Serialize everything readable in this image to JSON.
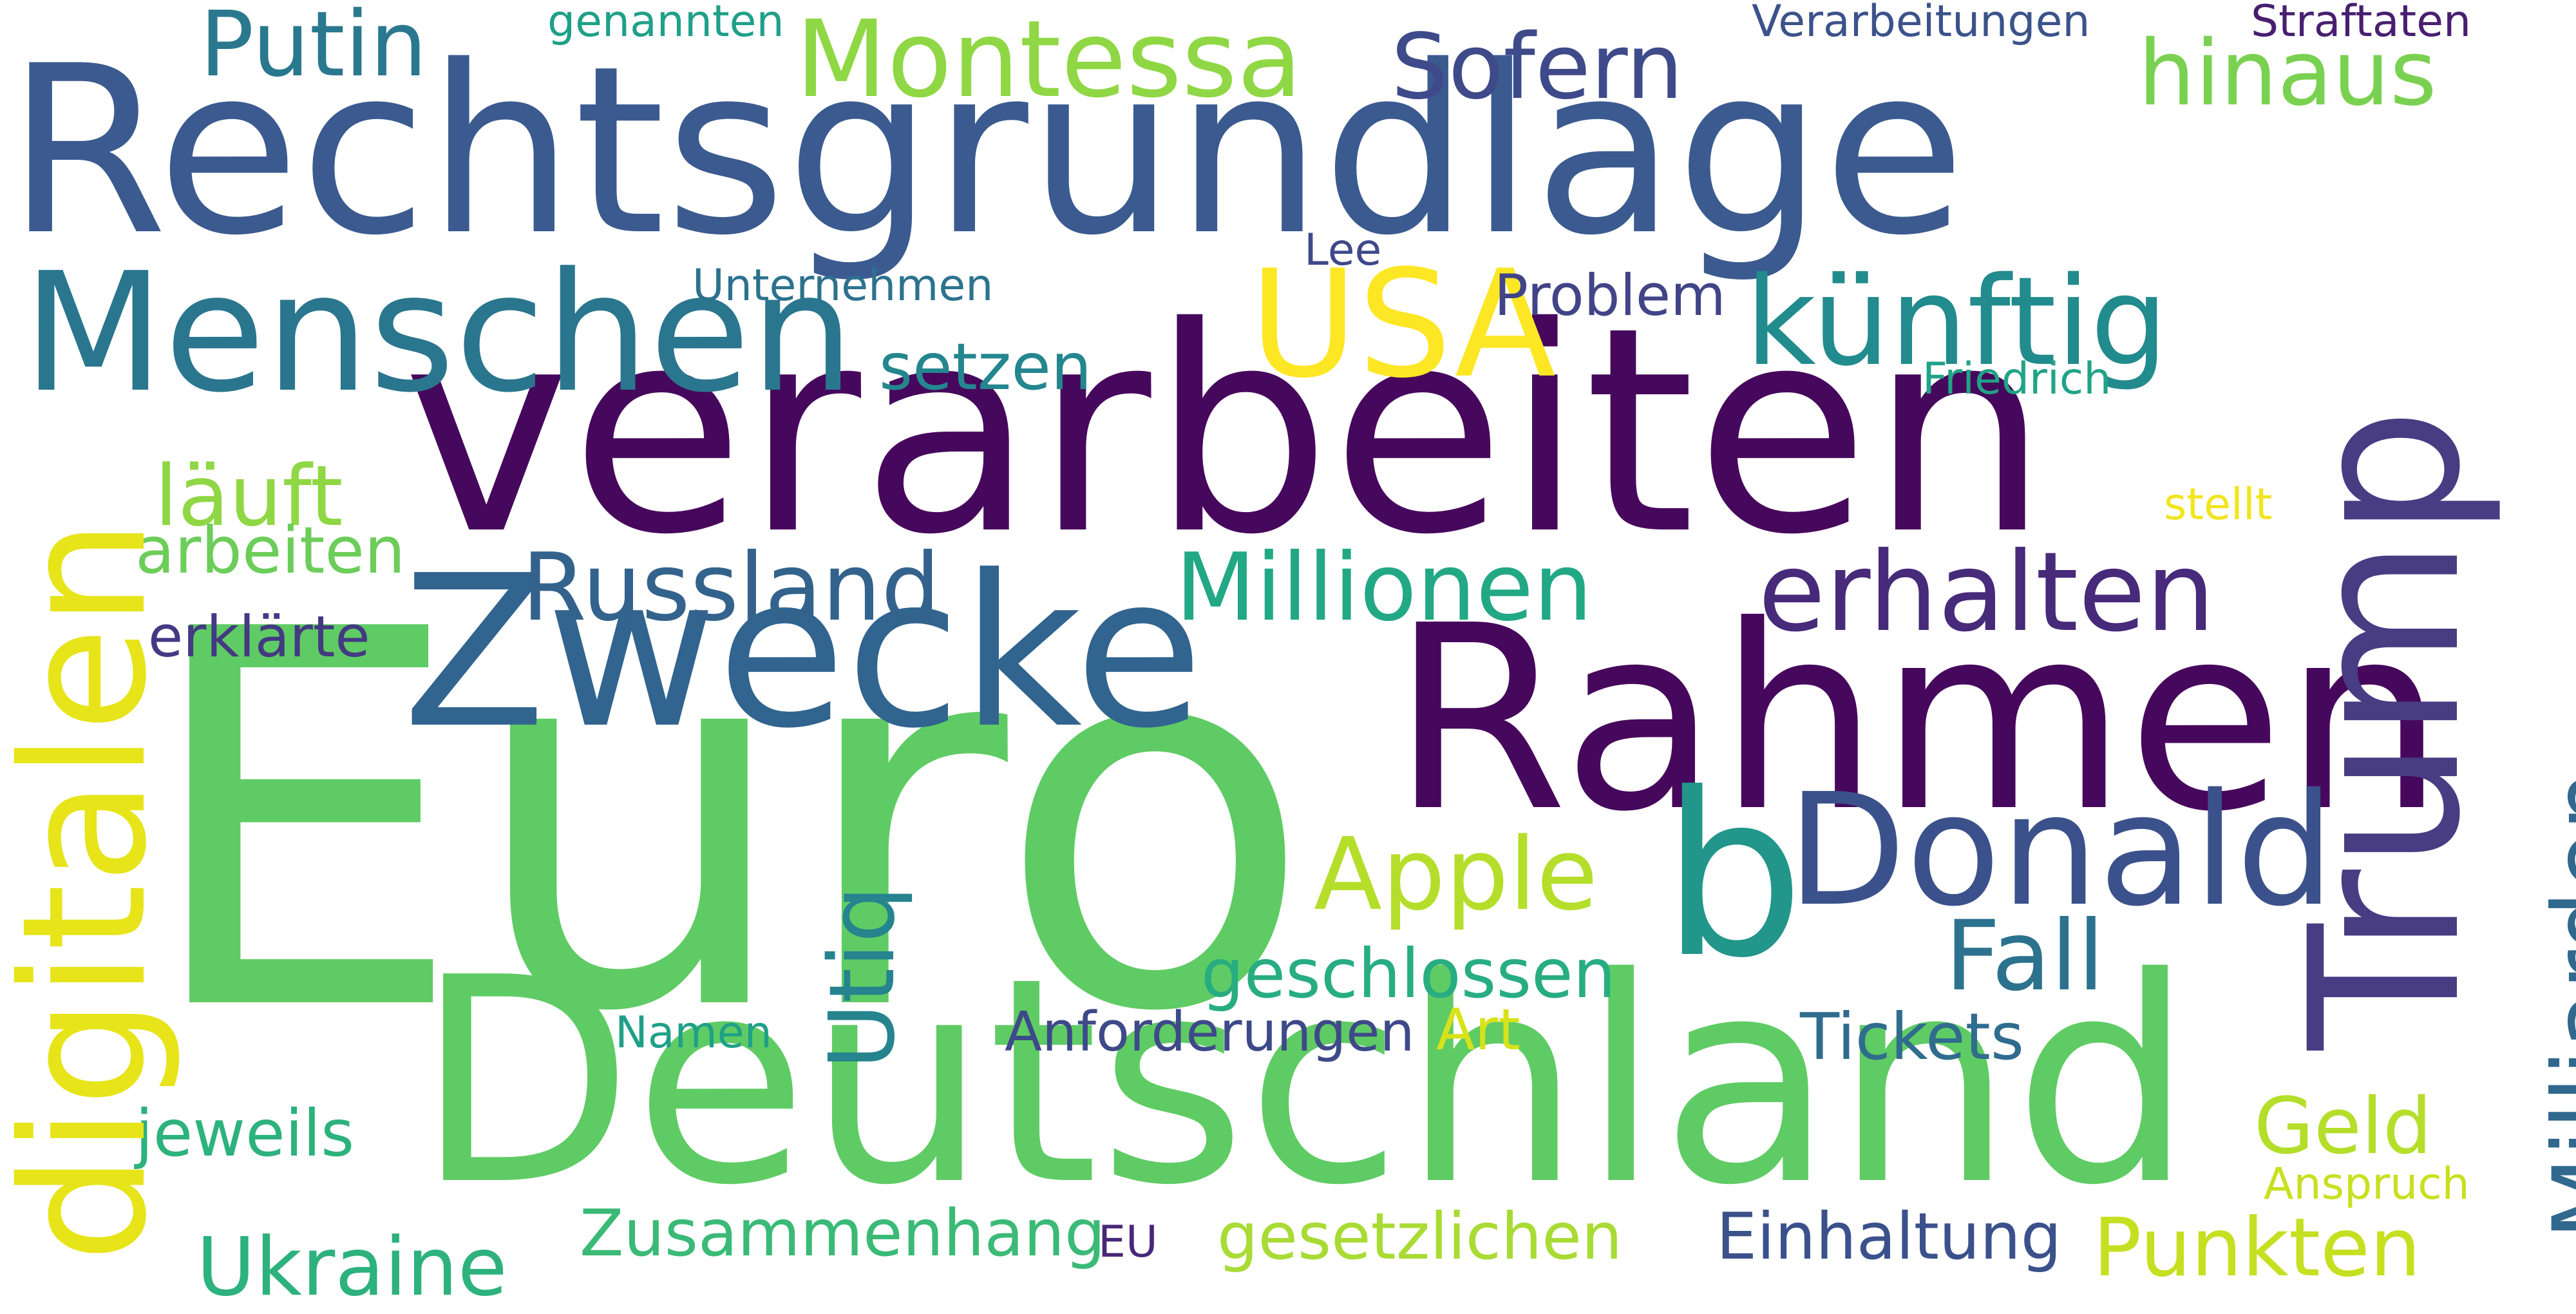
{
  "cloud": {
    "w1": {
      "text": "Rechtsgrundlage",
      "color": "#3b5a8f"
    },
    "w2": {
      "text": "Euro",
      "color": "#5fcb64"
    },
    "w3": {
      "text": "verarbeiten",
      "color": "#46085c"
    },
    "w4": {
      "text": "Deutschland",
      "color": "#5fcb64"
    },
    "w5": {
      "text": "Rahmen",
      "color": "#46085c"
    },
    "w6": {
      "text": "Zwecke",
      "color": "#31648e"
    },
    "w7": {
      "text": "Trump",
      "color": "#483c83"
    },
    "w8": {
      "text": "digitalen",
      "color": "#e7e419"
    },
    "w9": {
      "text": "b",
      "color": "#22968b"
    },
    "w10": {
      "text": "Menschen",
      "color": "#2a768e"
    },
    "w11": {
      "text": "Donald",
      "color": "#3b518b"
    },
    "w12": {
      "text": "USA",
      "color": "#fde725"
    },
    "w13": {
      "text": "Milliarden",
      "color": "#31688e"
    },
    "w14": {
      "text": "künftig",
      "color": "#228b8d"
    },
    "w15": {
      "text": "erhalten",
      "color": "#472a7a"
    },
    "w16": {
      "text": "Montessa",
      "color": "#8fd744"
    },
    "w17": {
      "text": "Apple",
      "color": "#b5de2b"
    },
    "w18": {
      "text": "Russland",
      "color": "#33638d"
    },
    "w19": {
      "text": "Millionen",
      "color": "#22a884"
    },
    "w20": {
      "text": "Putin",
      "color": "#2a788e"
    },
    "w21": {
      "text": "Sofern",
      "color": "#3e4a89"
    },
    "w22": {
      "text": "hinaus",
      "color": "#7ad151"
    },
    "w23": {
      "text": "läuft",
      "color": "#8fd744"
    },
    "w24": {
      "text": "Fall",
      "color": "#2c728e"
    },
    "w25": {
      "text": "Ukraine",
      "color": "#2db27d"
    },
    "w26": {
      "text": "Punkten",
      "color": "#c5e021"
    },
    "w27": {
      "text": "Geld",
      "color": "#b5de2b"
    },
    "w28": {
      "text": "Utiq",
      "color": "#25848e"
    },
    "w29": {
      "text": "geschlossen",
      "color": "#27ad81"
    },
    "w30": {
      "text": "Tickets",
      "color": "#2f6c8e"
    },
    "w31": {
      "text": "setzen",
      "color": "#24868e"
    },
    "w32": {
      "text": "jeweils",
      "color": "#2db27d"
    },
    "w33": {
      "text": "Zusammenhang",
      "color": "#3aba76"
    },
    "w34": {
      "text": "gesetzlichen",
      "color": "#a8db34"
    },
    "w35": {
      "text": "Einhaltung",
      "color": "#3b518b"
    },
    "w36": {
      "text": "Anforderungen",
      "color": "#3e4989"
    },
    "w37": {
      "text": "arbeiten",
      "color": "#6ccd5a"
    },
    "w38": {
      "text": "erklärte",
      "color": "#443983"
    },
    "w39": {
      "text": "Problem",
      "color": "#414487"
    },
    "w40": {
      "text": "Art",
      "color": "#d8e219"
    },
    "w41": {
      "text": "Namen",
      "color": "#1fa088"
    },
    "w42": {
      "text": "Unternehmen",
      "color": "#2c728e"
    },
    "w43": {
      "text": "Friedrich",
      "color": "#20a386"
    },
    "w44": {
      "text": "stellt",
      "color": "#f1e51d"
    },
    "w45": {
      "text": "Anspruch",
      "color": "#c8e020"
    },
    "w46": {
      "text": "Lee",
      "color": "#3e4989"
    },
    "w47": {
      "text": "EU",
      "color": "#482878"
    },
    "w48": {
      "text": "genannten",
      "color": "#1fa088"
    },
    "w49": {
      "text": "Verarbeitungen",
      "color": "#3b528b"
    },
    "w50": {
      "text": "Straftaten",
      "color": "#481f70"
    }
  }
}
